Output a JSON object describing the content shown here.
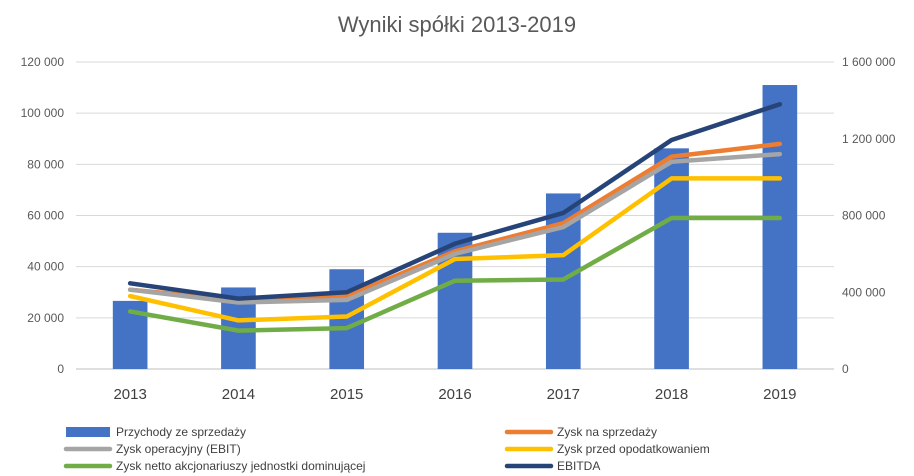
{
  "chart_data": {
    "type": "bar",
    "title": "Wyniki spółki 2013-2019",
    "categories": [
      "2013",
      "2014",
      "2015",
      "2016",
      "2017",
      "2018",
      "2019"
    ],
    "y_left": {
      "ylim": [
        0,
        120000
      ],
      "ticks": [
        "0",
        "20 000",
        "40 000",
        "60 000",
        "80 000",
        "100 000",
        "120 000"
      ]
    },
    "y_right": {
      "ylim": [
        0,
        1600000
      ],
      "ticks": [
        "0",
        "400 000",
        "800 000",
        "1 200 000",
        "1 600 000"
      ]
    },
    "grid": true,
    "legend_position": "bottom",
    "bar_series": {
      "name": "Przychody ze sprzedaży",
      "axis": "right",
      "color": "#4472C4",
      "values": [
        355000,
        425000,
        520000,
        710000,
        915000,
        1150000,
        1480000
      ]
    },
    "line_series": [
      {
        "name": "Zysk na sprzedaży",
        "axis": "left",
        "color": "#ED7D31",
        "values": [
          31000,
          27000,
          28500,
          46000,
          57000,
          83000,
          88000
        ]
      },
      {
        "name": "Zysk operacyjny (EBIT)",
        "axis": "left",
        "color": "#A5A5A5",
        "values": [
          31000,
          26000,
          27000,
          45000,
          55500,
          81000,
          84000
        ]
      },
      {
        "name": "Zysk przed opodatkowaniem",
        "axis": "left",
        "color": "#FFC000",
        "values": [
          28500,
          19000,
          20500,
          43000,
          44500,
          74500,
          74500
        ]
      },
      {
        "name": "Zysk netto akcjonariuszy jednostki dominującej",
        "axis": "left",
        "color": "#70AD47",
        "values": [
          22500,
          15000,
          16000,
          34500,
          35000,
          59000,
          59000
        ]
      },
      {
        "name": "EBITDA",
        "axis": "left",
        "color": "#264478",
        "values": [
          33500,
          27500,
          30000,
          49000,
          61000,
          89500,
          103500
        ]
      }
    ],
    "legend": [
      "Przychody ze sprzedaży",
      "Zysk na sprzedaży",
      "Zysk operacyjny (EBIT)",
      "Zysk przed opodatkowaniem",
      "Zysk netto akcjonariuszy jednostki dominującej",
      "EBITDA"
    ]
  }
}
